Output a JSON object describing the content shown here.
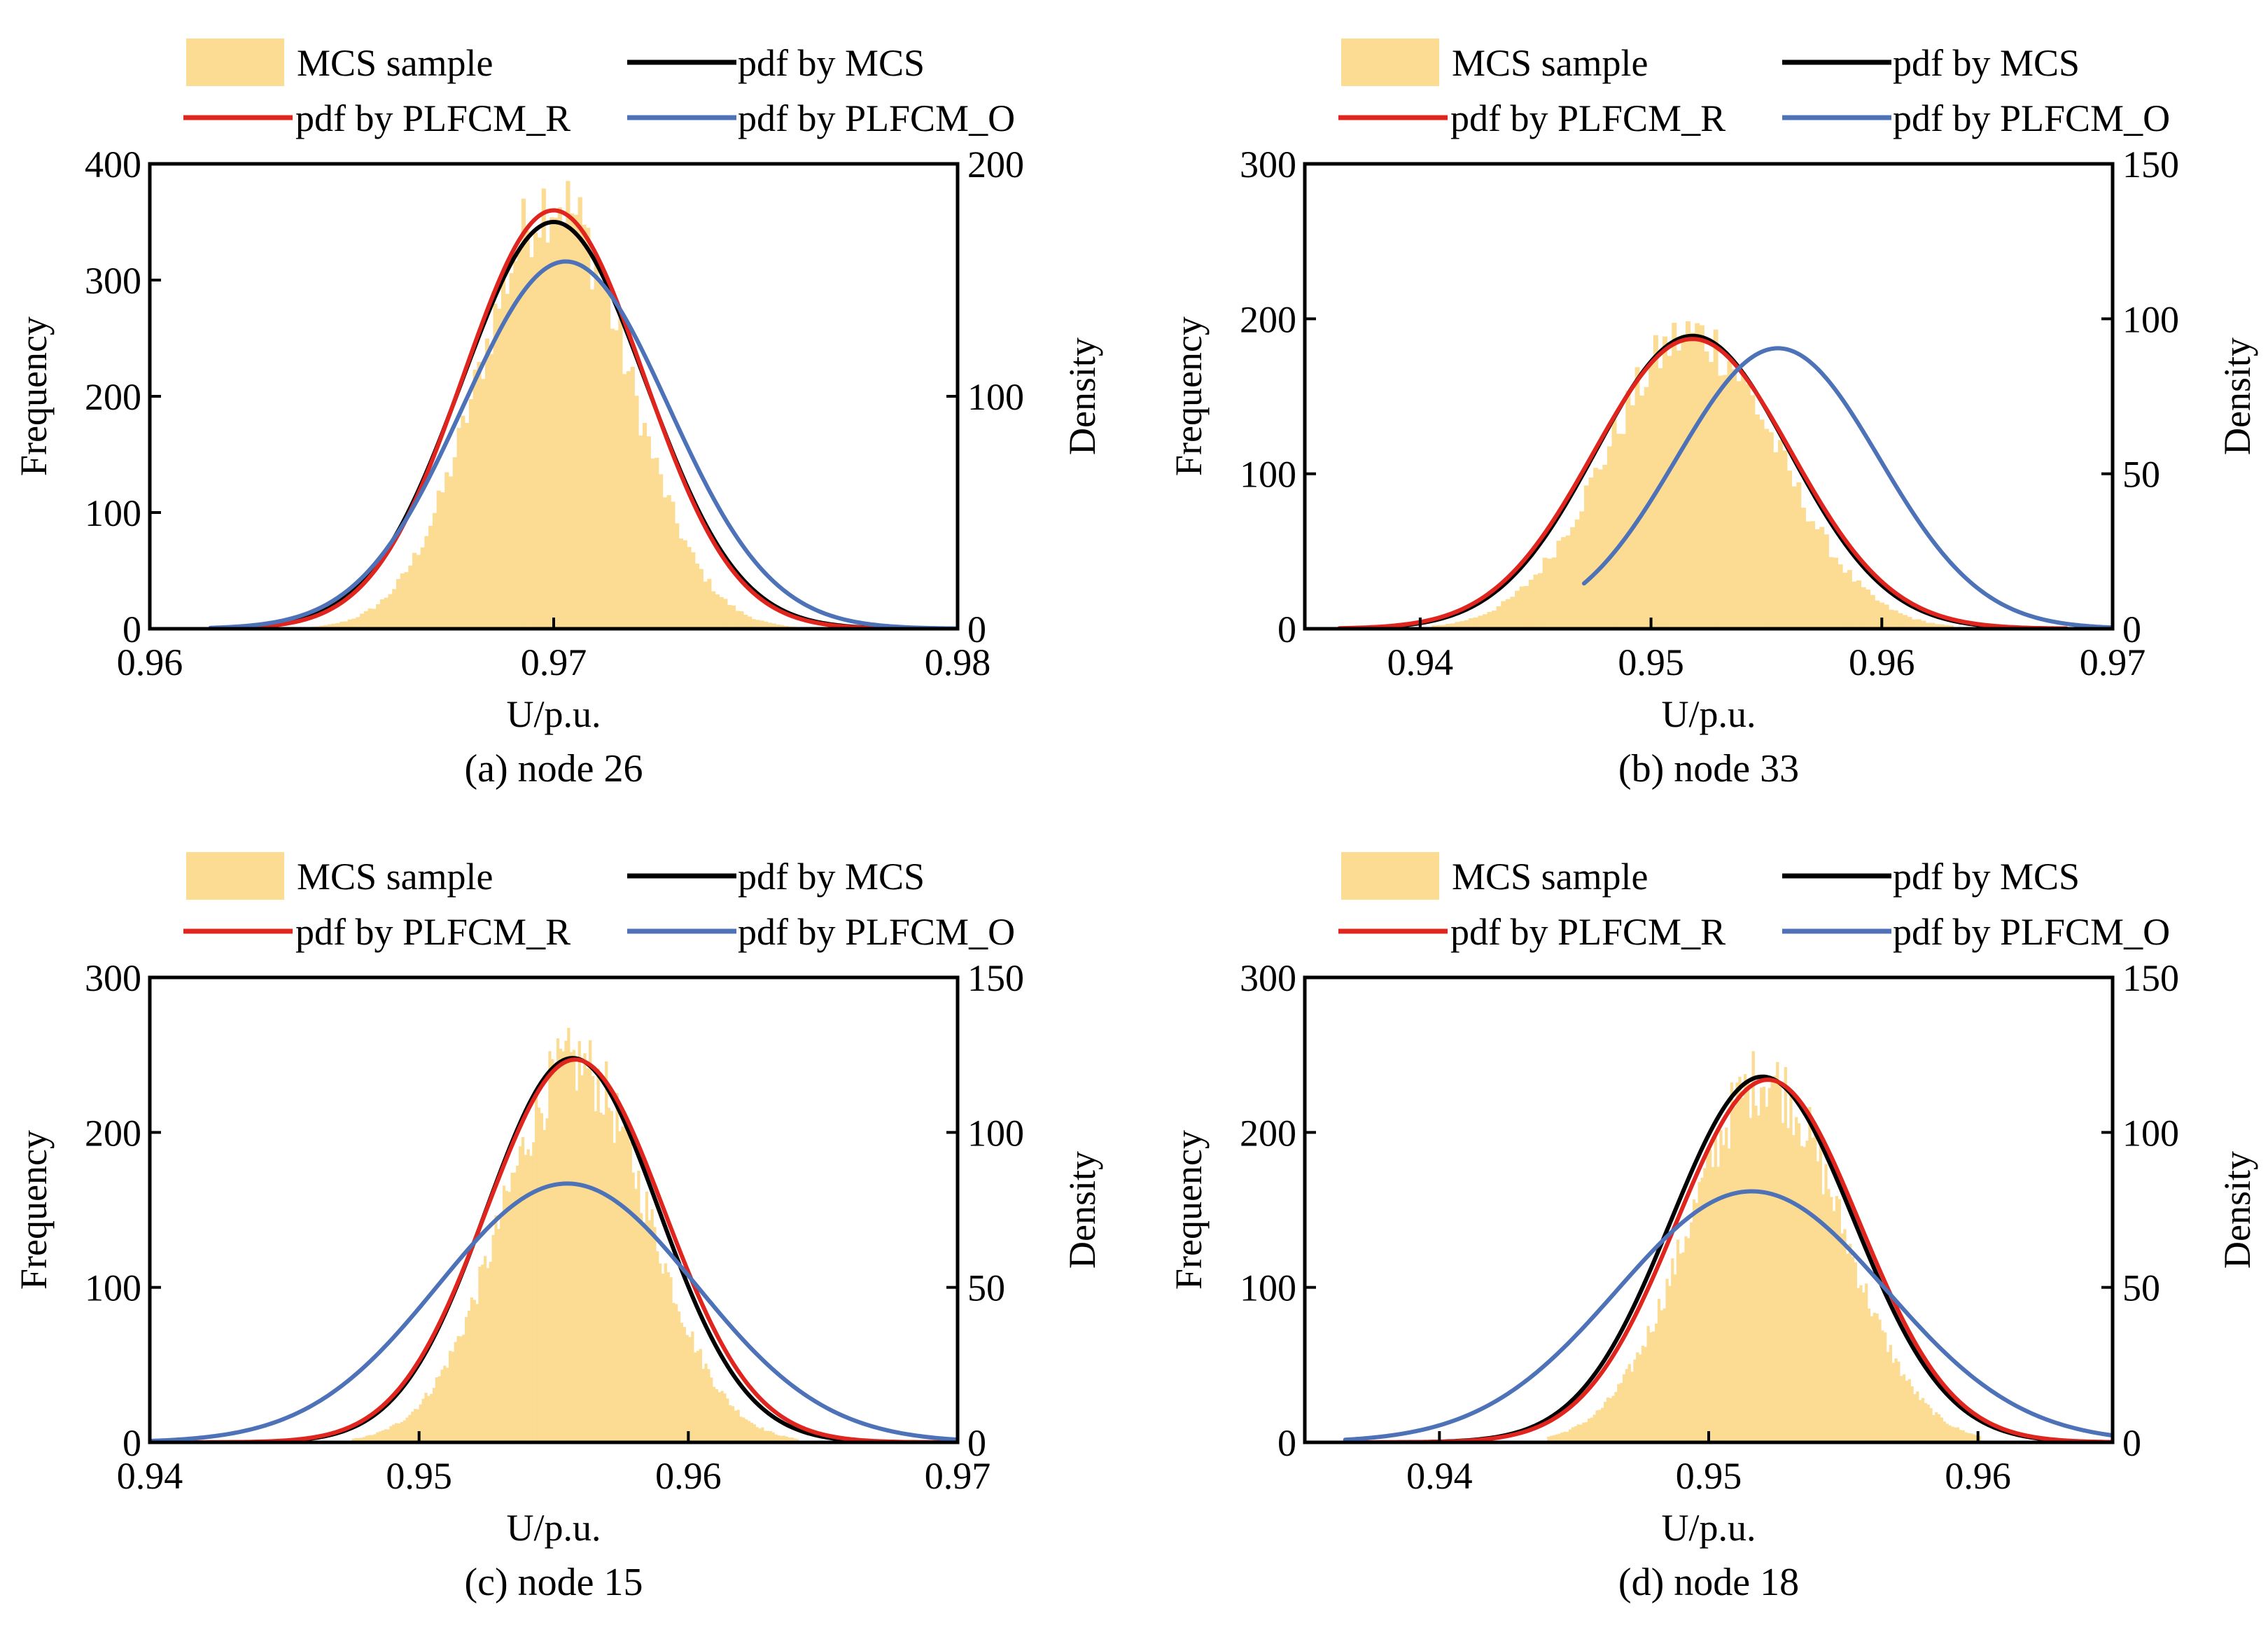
{
  "colors": {
    "histogram": "#fcdb92",
    "mcs": "#000000",
    "plfcm_r": "#e0251e",
    "plfcm_o": "#4d72b8"
  },
  "legend": {
    "mcs_sample": "MCS sample",
    "pdf_mcs": "pdf by MCS",
    "pdf_plfcm_r": "pdf by PLFCM_R",
    "pdf_plfcm_o": "pdf by PLFCM_O"
  },
  "chart_data": [
    {
      "type": "bar",
      "title": "(a) node 26",
      "xlabel": "U/p.u.",
      "ylabel": "Frequency",
      "y2label": "Density",
      "xlim": [
        0.96,
        0.98
      ],
      "ylim": [
        0,
        400
      ],
      "y2lim": [
        0,
        200
      ],
      "xticks": [
        "0.96",
        "0.97",
        "0.98"
      ],
      "xtick_values": [
        0.96,
        0.97,
        0.98
      ],
      "yticks": [
        "0",
        "100",
        "200",
        "300",
        "400"
      ],
      "y2ticks": [
        "0",
        "100",
        "200"
      ],
      "histogram": {
        "center": 0.97,
        "sd": 0.00182,
        "peak": 370,
        "bin_width": 0.0001,
        "range": [
          0.9635,
          0.9765
        ]
      },
      "series": [
        {
          "name": "pdf by MCS",
          "color_key": "mcs",
          "mean": 0.97,
          "sd": 0.00228,
          "peak_density": 175,
          "range": [
            0.9615,
            0.979
          ]
        },
        {
          "name": "pdf by PLFCM_R",
          "color_key": "plfcm_r",
          "mean": 0.97,
          "sd": 0.00223,
          "peak_density": 180,
          "range": [
            0.9615,
            0.979
          ]
        },
        {
          "name": "pdf by PLFCM_O",
          "color_key": "plfcm_o",
          "mean": 0.9703,
          "sd": 0.00254,
          "peak_density": 158,
          "range": [
            0.9615,
            0.98
          ]
        }
      ]
    },
    {
      "type": "bar",
      "title": "(b) node 33",
      "xlabel": "U/p.u.",
      "ylabel": "Frequency",
      "y2label": "Density",
      "xlim": [
        0.935,
        0.97
      ],
      "ylim": [
        0,
        300
      ],
      "y2lim": [
        0,
        150
      ],
      "xticks": [
        "0.94",
        "0.95",
        "0.96",
        "0.97"
      ],
      "xtick_values": [
        0.94,
        0.95,
        0.96,
        0.97
      ],
      "yticks": [
        "0",
        "100",
        "200",
        "300"
      ],
      "y2ticks": [
        "0",
        "50",
        "100",
        "150"
      ],
      "histogram": {
        "center": 0.9518,
        "sd": 0.0037,
        "peak": 190,
        "bin_width": 0.0002,
        "range": [
          0.9405,
          0.963
        ]
      },
      "series": [
        {
          "name": "pdf by MCS",
          "color_key": "mcs",
          "mean": 0.9518,
          "sd": 0.0042,
          "peak_density": 94.5,
          "range": [
            0.9365,
            0.968
          ]
        },
        {
          "name": "pdf by PLFCM_R",
          "color_key": "plfcm_r",
          "mean": 0.9518,
          "sd": 0.0043,
          "peak_density": 93.5,
          "range": [
            0.9365,
            0.968
          ]
        },
        {
          "name": "pdf by PLFCM_O",
          "color_key": "plfcm_o",
          "mean": 0.9555,
          "sd": 0.0044,
          "peak_density": 90.5,
          "range": [
            0.9471,
            0.97
          ]
        }
      ]
    },
    {
      "type": "bar",
      "title": "(c) node 15",
      "xlabel": "U/p.u.",
      "ylabel": "Frequency",
      "y2label": "Density",
      "xlim": [
        0.94,
        0.97
      ],
      "ylim": [
        0,
        300
      ],
      "y2lim": [
        0,
        150
      ],
      "xticks": [
        "0.94",
        "0.95",
        "0.96",
        "0.97"
      ],
      "xtick_values": [
        0.94,
        0.95,
        0.96,
        0.97
      ],
      "yticks": [
        "0",
        "100",
        "200",
        "300"
      ],
      "y2ticks": [
        "0",
        "50",
        "100",
        "150"
      ],
      "histogram": {
        "center": 0.9558,
        "sd": 0.0027,
        "peak": 245,
        "bin_width": 0.0001,
        "range": [
          0.9475,
          0.964
        ]
      },
      "series": [
        {
          "name": "pdf by MCS",
          "color_key": "mcs",
          "mean": 0.9557,
          "sd": 0.0032,
          "peak_density": 124,
          "range": [
            0.94,
            0.97
          ]
        },
        {
          "name": "pdf by PLFCM_R",
          "color_key": "plfcm_r",
          "mean": 0.9558,
          "sd": 0.0033,
          "peak_density": 123.5,
          "range": [
            0.94,
            0.97
          ]
        },
        {
          "name": "pdf by PLFCM_O",
          "color_key": "plfcm_o",
          "mean": 0.9555,
          "sd": 0.0048,
          "peak_density": 83.5,
          "range": [
            0.94,
            0.97
          ]
        }
      ]
    },
    {
      "type": "bar",
      "title": "(d) node 18",
      "xlabel": "U/p.u.",
      "ylabel": "Frequency",
      "y2label": "Density",
      "xlim": [
        0.935,
        0.965
      ],
      "ylim": [
        0,
        300
      ],
      "y2lim": [
        0,
        150
      ],
      "xticks": [
        "0.94",
        "0.95",
        "0.96"
      ],
      "xtick_values": [
        0.94,
        0.95,
        0.96
      ],
      "yticks": [
        "0",
        "100",
        "200",
        "300"
      ],
      "y2ticks": [
        "0",
        "50",
        "100",
        "150"
      ],
      "histogram": {
        "center": 0.9521,
        "sd": 0.0028,
        "peak": 235,
        "bin_width": 0.0001,
        "range": [
          0.944,
          0.96
        ]
      },
      "series": [
        {
          "name": "pdf by MCS",
          "color_key": "mcs",
          "mean": 0.952,
          "sd": 0.0034,
          "peak_density": 118,
          "range": [
            0.9365,
            0.965
          ]
        },
        {
          "name": "pdf by PLFCM_R",
          "color_key": "plfcm_r",
          "mean": 0.9522,
          "sd": 0.0034,
          "peak_density": 117,
          "range": [
            0.9365,
            0.965
          ]
        },
        {
          "name": "pdf by PLFCM_O",
          "color_key": "plfcm_o",
          "mean": 0.9516,
          "sd": 0.005,
          "peak_density": 81,
          "range": [
            0.9365,
            0.965
          ]
        }
      ]
    }
  ]
}
